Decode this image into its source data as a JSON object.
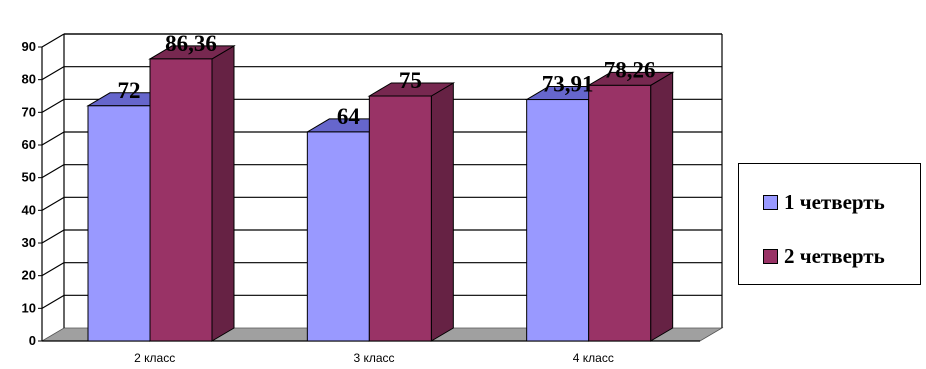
{
  "chart_data": {
    "type": "bar",
    "title": "",
    "xlabel": "",
    "ylabel": "",
    "categories": [
      "2 класс",
      "3 класс",
      "4 класс"
    ],
    "series": [
      {
        "name": "1 четверть",
        "values": [
          72,
          64,
          73.91
        ],
        "labels": [
          "72",
          "64",
          "73,91"
        ],
        "color": "#9999ff"
      },
      {
        "name": "2 четверть",
        "values": [
          86.36,
          75,
          78.26
        ],
        "labels": [
          "86,36",
          "75",
          "78,26"
        ],
        "color": "#993366"
      }
    ],
    "yticks": [
      "0",
      "10",
      "20",
      "30",
      "40",
      "50",
      "60",
      "70",
      "80",
      "90"
    ],
    "ylim": [
      0,
      90
    ],
    "grid": true,
    "three_d": true,
    "legend_position": "right",
    "colors": {
      "series1_top": "#6666cc",
      "series2_side": "#662244",
      "series2_top": "#772850",
      "floor": "#a0a0a0"
    }
  }
}
